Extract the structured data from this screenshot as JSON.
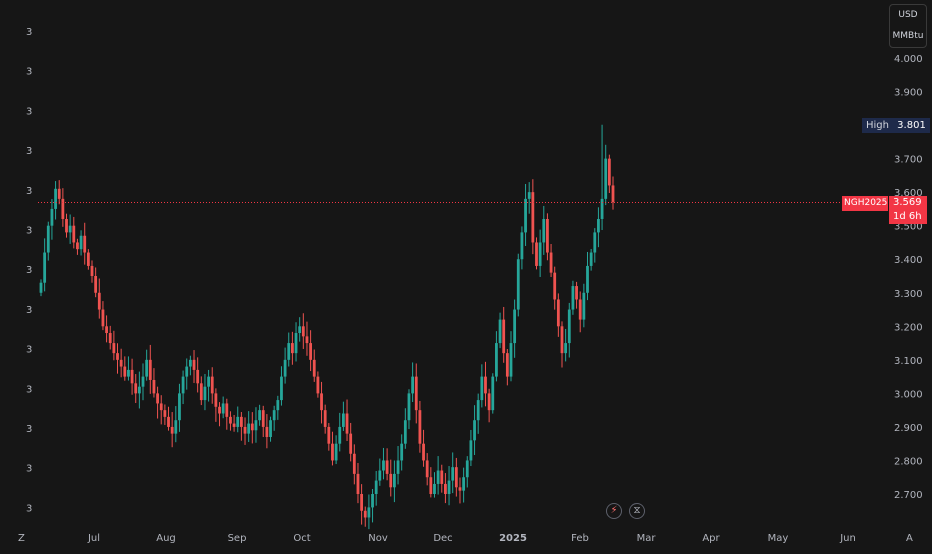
{
  "header": {
    "currency": "USD",
    "unit": "MMBtu"
  },
  "left_scale": {
    "labels": [
      "3",
      "3",
      "3",
      "3",
      "3",
      "3",
      "3",
      "3",
      "3",
      "3",
      "3",
      "3",
      "3"
    ],
    "corner": "Z"
  },
  "right_scale": {
    "corner": "A"
  },
  "markers": {
    "high_label": "High",
    "high_value": "3.801",
    "symbol": "NGH2025",
    "last_price": "3.569",
    "countdown": "1d 6h"
  },
  "tools": {
    "lightning_icon": "lightning-icon",
    "hourglass_icon": "hourglass-icon"
  },
  "colors": {
    "up": "#26a69a",
    "down": "#ef5350",
    "background": "#161616",
    "high_badge": "#1e2a4a",
    "price_badge": "#f23645"
  },
  "chart_data": {
    "type": "candlestick",
    "symbol": "NGH2025",
    "currency": "USD",
    "unit": "MMBtu",
    "y_ticks": [
      2.7,
      2.8,
      2.9,
      3.0,
      3.1,
      3.2,
      3.3,
      3.4,
      3.5,
      3.6,
      3.7,
      3.8,
      3.9,
      4.0
    ],
    "y_tick_labels": [
      "2.700",
      "2.800",
      "2.900",
      "3.000",
      "3.100",
      "3.200",
      "3.300",
      "3.400",
      "3.500",
      "3.600",
      "3.700",
      "3.800",
      "3.900",
      "4.000"
    ],
    "ylim": [
      2.62,
      4.08
    ],
    "x_tick_labels": [
      "Jul",
      "Aug",
      "Sep",
      "Oct",
      "Nov",
      "Dec",
      "2025",
      "Feb",
      "Mar",
      "Apr",
      "May",
      "Jun"
    ],
    "high": 3.801,
    "last": 3.569,
    "grid": false,
    "closes": [
      3.33,
      3.42,
      3.5,
      3.55,
      3.61,
      3.58,
      3.52,
      3.48,
      3.5,
      3.45,
      3.43,
      3.47,
      3.42,
      3.38,
      3.35,
      3.3,
      3.25,
      3.2,
      3.18,
      3.15,
      3.12,
      3.1,
      3.08,
      3.05,
      3.07,
      3.03,
      3.0,
      3.02,
      3.05,
      3.1,
      3.04,
      3.0,
      2.97,
      2.95,
      2.93,
      2.9,
      2.88,
      2.92,
      3.0,
      3.05,
      3.08,
      3.1,
      3.07,
      3.03,
      2.98,
      3.02,
      3.05,
      3.0,
      2.96,
      2.94,
      2.97,
      2.93,
      2.91,
      2.9,
      2.93,
      2.9,
      2.88,
      2.91,
      2.89,
      2.92,
      2.95,
      2.9,
      2.87,
      2.92,
      2.95,
      2.98,
      3.05,
      3.1,
      3.15,
      3.12,
      3.18,
      3.2,
      3.17,
      3.15,
      3.1,
      3.05,
      3.0,
      2.95,
      2.9,
      2.85,
      2.8,
      2.85,
      2.9,
      2.94,
      2.88,
      2.82,
      2.76,
      2.7,
      2.65,
      2.63,
      2.66,
      2.7,
      2.74,
      2.77,
      2.8,
      2.76,
      2.72,
      2.76,
      2.8,
      2.85,
      2.92,
      3.0,
      3.05,
      2.95,
      2.85,
      2.8,
      2.75,
      2.7,
      2.73,
      2.77,
      2.73,
      2.7,
      2.74,
      2.78,
      2.72,
      2.71,
      2.75,
      2.8,
      2.86,
      2.92,
      2.98,
      3.05,
      3.0,
      2.95,
      3.05,
      3.15,
      3.22,
      3.12,
      3.05,
      3.15,
      3.25,
      3.4,
      3.48,
      3.58,
      3.6,
      3.45,
      3.38,
      3.45,
      3.52,
      3.42,
      3.36,
      3.28,
      3.2,
      3.12,
      3.15,
      3.25,
      3.32,
      3.28,
      3.22,
      3.3,
      3.38,
      3.42,
      3.48,
      3.52,
      3.58,
      3.7,
      3.62,
      3.57
    ],
    "high_index": 154
  }
}
